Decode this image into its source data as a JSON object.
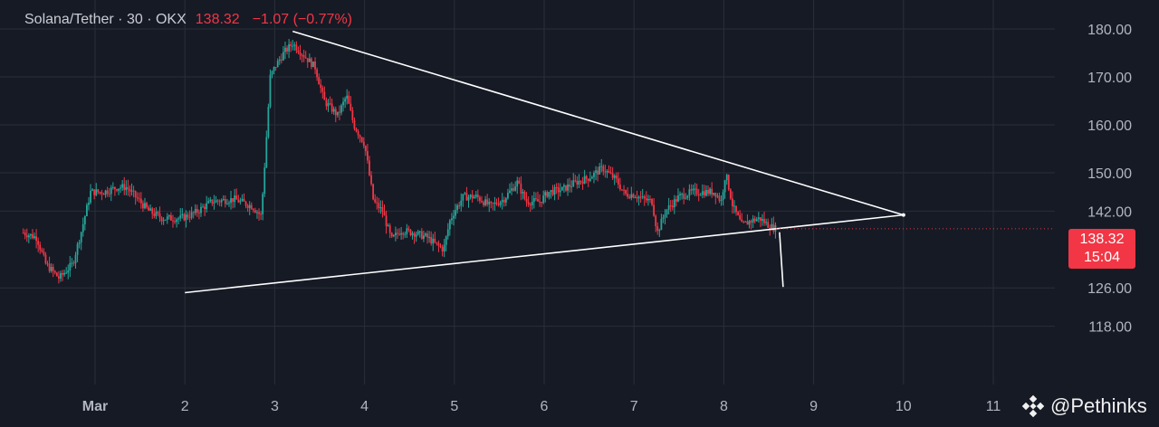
{
  "header": {
    "symbol": "Solana/Tether · 30 · OKX",
    "price": "138.32",
    "change": "−1.07 (−0.77%)"
  },
  "price_tag": {
    "price": "138.32",
    "countdown": "15:04"
  },
  "watermark": {
    "handle": "@Pethinks",
    "icon": "binance-logo-icon"
  },
  "colors": {
    "background": "#161a25",
    "up": "#26a69a",
    "down": "#f23645",
    "grid": "#2a2e39",
    "trendline": "#ffffff"
  },
  "chart_data": {
    "type": "candlestick",
    "title": "Solana/Tether · 30 · OKX",
    "x_ticks": [
      "Mar",
      "2",
      "3",
      "4",
      "5",
      "6",
      "7",
      "8",
      "9",
      "10",
      "11"
    ],
    "y_ticks": [
      "118.00",
      "126.00",
      "142.00",
      "150.00",
      "160.00",
      "170.00",
      "180.00"
    ],
    "ylim": [
      116,
      182
    ],
    "grid": true,
    "close_path": [
      [
        0.2,
        137.5
      ],
      [
        0.35,
        136.5
      ],
      [
        0.45,
        131
      ],
      [
        0.6,
        128
      ],
      [
        0.75,
        131
      ],
      [
        0.85,
        138
      ],
      [
        0.95,
        146
      ],
      [
        1.1,
        146
      ],
      [
        1.25,
        147
      ],
      [
        1.35,
        147
      ],
      [
        1.45,
        145
      ],
      [
        1.6,
        142
      ],
      [
        1.75,
        140.5
      ],
      [
        1.95,
        140.5
      ],
      [
        2.1,
        141.5
      ],
      [
        2.3,
        144
      ],
      [
        2.55,
        144.5
      ],
      [
        2.75,
        143
      ],
      [
        2.85,
        141
      ],
      [
        2.9,
        155
      ],
      [
        2.95,
        170
      ],
      [
        3.0,
        172
      ],
      [
        3.1,
        175
      ],
      [
        3.2,
        177
      ],
      [
        3.3,
        175
      ],
      [
        3.45,
        172
      ],
      [
        3.55,
        165
      ],
      [
        3.7,
        162
      ],
      [
        3.8,
        166
      ],
      [
        3.88,
        160
      ],
      [
        4.0,
        156
      ],
      [
        4.1,
        144
      ],
      [
        4.2,
        142
      ],
      [
        4.3,
        136
      ],
      [
        4.4,
        138
      ],
      [
        4.55,
        137.5
      ],
      [
        4.7,
        136.5
      ],
      [
        4.8,
        135
      ],
      [
        4.88,
        134
      ],
      [
        4.95,
        140
      ],
      [
        5.0,
        142
      ],
      [
        5.1,
        145
      ],
      [
        5.25,
        145
      ],
      [
        5.4,
        143
      ],
      [
        5.55,
        144.5
      ],
      [
        5.7,
        148
      ],
      [
        5.8,
        144
      ],
      [
        5.95,
        144
      ],
      [
        6.05,
        146
      ],
      [
        6.2,
        146.5
      ],
      [
        6.35,
        148
      ],
      [
        6.5,
        149
      ],
      [
        6.65,
        151
      ],
      [
        6.8,
        148.5
      ],
      [
        6.9,
        145.5
      ],
      [
        7.0,
        145.5
      ],
      [
        7.1,
        144.5
      ],
      [
        7.2,
        144
      ],
      [
        7.26,
        137.5
      ],
      [
        7.35,
        142
      ],
      [
        7.5,
        145
      ],
      [
        7.65,
        146
      ],
      [
        7.8,
        146
      ],
      [
        7.9,
        146
      ],
      [
        7.97,
        144
      ],
      [
        8.02,
        150
      ],
      [
        8.1,
        143
      ],
      [
        8.2,
        139
      ],
      [
        8.3,
        140
      ],
      [
        8.4,
        140.5
      ],
      [
        8.5,
        139
      ],
      [
        8.58,
        138.32
      ]
    ],
    "annotations": {
      "trendline_upper": {
        "from": [
          3.2,
          179.5
        ],
        "to": [
          10.0,
          141.2
        ]
      },
      "trendline_lower": {
        "from": [
          2.0,
          125
        ],
        "to": [
          10.0,
          141.2
        ]
      },
      "breakdown_line": {
        "from": [
          8.62,
          137.6
        ],
        "to": [
          8.66,
          126.2
        ]
      }
    },
    "last_price": 138.32
  }
}
